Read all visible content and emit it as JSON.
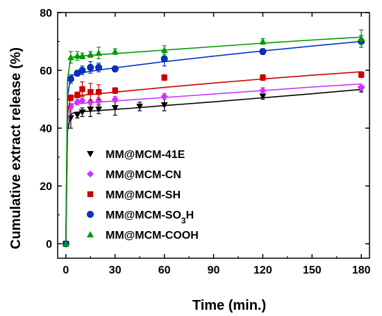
{
  "chart_data": {
    "type": "scatter",
    "xlabel": "Time (min.)",
    "ylabel": "Cumulative extract release (%)",
    "xlim": [
      -5,
      185
    ],
    "ylim": [
      -5,
      80
    ],
    "xticks": [
      0,
      30,
      60,
      90,
      120,
      150,
      180
    ],
    "yticks": [
      0,
      20,
      40,
      60,
      80
    ],
    "legend_position": "lower-center",
    "series": [
      {
        "name": "MM@MCM-41E",
        "marker": "triangle-down",
        "color": "#000000",
        "x": [
          0,
          3,
          7,
          10,
          15,
          20,
          30,
          45,
          60,
          120,
          180
        ],
        "y": [
          0,
          43.5,
          44.5,
          45.5,
          46.5,
          46.5,
          47,
          47.5,
          48,
          51,
          53.5
        ],
        "err": [
          0,
          3.5,
          1,
          1.5,
          2.5,
          1.5,
          2.5,
          1.5,
          2,
          1,
          1
        ],
        "fit_x": [
          0,
          1,
          3,
          5,
          10,
          20,
          40,
          60,
          90,
          120,
          150,
          180
        ],
        "fit_y": [
          0,
          39,
          44.7,
          45.4,
          45.7,
          46.1,
          46.9,
          47.8,
          49.1,
          50.5,
          51.9,
          53.4
        ]
      },
      {
        "name": "MM@MCM-CN",
        "marker": "diamond",
        "color": "#cc33ff",
        "x": [
          0,
          3,
          7,
          10,
          15,
          20,
          30,
          60,
          120,
          180
        ],
        "y": [
          0,
          47.5,
          49,
          49.5,
          49,
          49.5,
          50,
          51,
          53,
          54
        ],
        "err": [
          0,
          1,
          1,
          1,
          1,
          1,
          1,
          1,
          1,
          1
        ],
        "fit_x": [
          0,
          1,
          3,
          5,
          10,
          20,
          40,
          60,
          90,
          120,
          150,
          180
        ],
        "fit_y": [
          0,
          42,
          47.9,
          48.4,
          48.6,
          49,
          49.8,
          50.6,
          51.8,
          53,
          54.2,
          55.3
        ]
      },
      {
        "name": "MM@MCM-SH",
        "marker": "square",
        "color": "#cc0000",
        "x": [
          0,
          3,
          7,
          10,
          15,
          20,
          30,
          60,
          120,
          180
        ],
        "y": [
          0,
          50.5,
          51.5,
          53.5,
          52.5,
          52.5,
          53,
          57.5,
          57.5,
          58.5
        ],
        "err": [
          0,
          1,
          1,
          2.5,
          3,
          2.5,
          1,
          1,
          1,
          1
        ],
        "fit_x": [
          0,
          1,
          3,
          5,
          10,
          20,
          40,
          60,
          90,
          120,
          150,
          180
        ],
        "fit_y": [
          0,
          45,
          50.8,
          51.1,
          51.4,
          51.9,
          53,
          54.1,
          55.6,
          57,
          58.3,
          59.5
        ]
      },
      {
        "name": "MM@MCM-SO3H",
        "marker": "circle",
        "color": "#0033cc",
        "x": [
          0,
          3,
          7,
          10,
          15,
          20,
          30,
          60,
          120,
          180
        ],
        "y": [
          0,
          57,
          59,
          60,
          61,
          61,
          60.5,
          64,
          66.5,
          70
        ],
        "err": [
          0,
          1.5,
          1,
          1.5,
          2,
          1.5,
          1,
          2.5,
          1,
          2
        ],
        "fit_x": [
          0,
          1,
          3,
          5,
          10,
          20,
          40,
          60,
          90,
          120,
          150,
          180
        ],
        "fit_y": [
          0,
          51,
          57.8,
          58.5,
          59.2,
          60.1,
          61.6,
          63,
          64.9,
          66.7,
          68.4,
          70
        ]
      },
      {
        "name": "MM@MCM-COOH",
        "marker": "triangle-up",
        "color": "#009900",
        "x": [
          0,
          3,
          7,
          10,
          15,
          20,
          30,
          60,
          120,
          180
        ],
        "y": [
          0,
          64.5,
          65,
          65,
          65.5,
          66,
          66.5,
          67,
          70,
          71
        ],
        "err": [
          0,
          2,
          1.5,
          1,
          1,
          2,
          1,
          1.5,
          1,
          3
        ],
        "fit_x": [
          0,
          1,
          3,
          5,
          10,
          20,
          40,
          60,
          90,
          120,
          150,
          180
        ],
        "fit_y": [
          0,
          57,
          64.4,
          64.7,
          65,
          65.4,
          66.2,
          67,
          68.2,
          69.4,
          70.5,
          71.5
        ]
      }
    ]
  }
}
